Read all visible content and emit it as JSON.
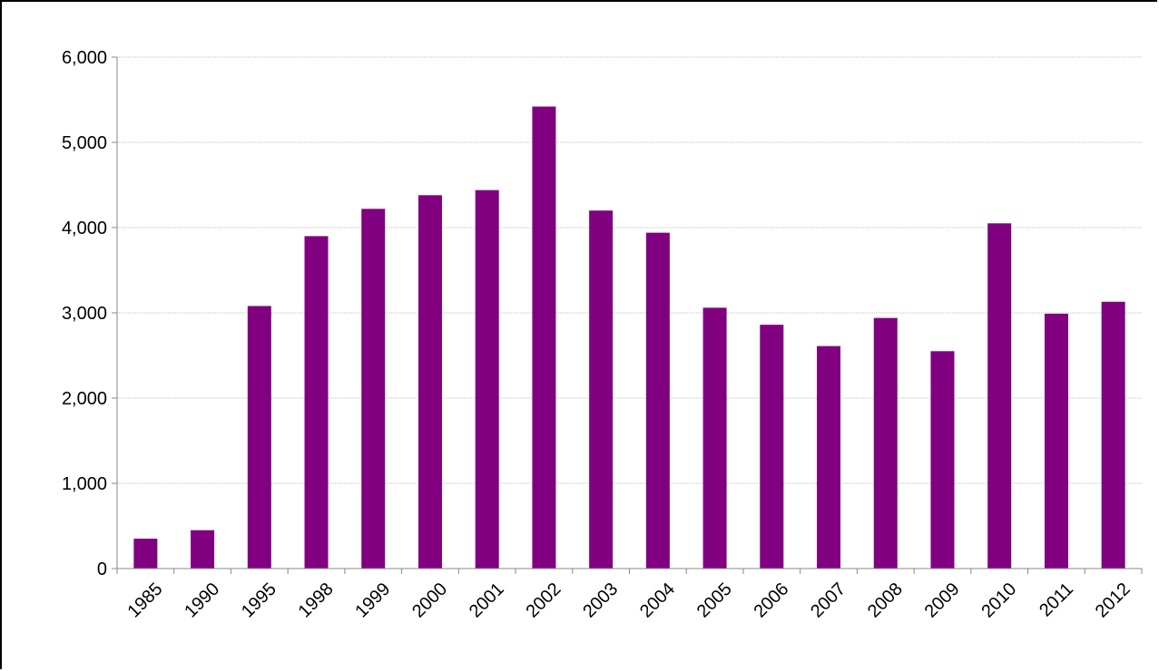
{
  "chart_data": {
    "type": "bar",
    "title": "",
    "xlabel": "",
    "ylabel": "",
    "categories": [
      "1985",
      "1990",
      "1995",
      "1998",
      "1999",
      "2000",
      "2001",
      "2002",
      "2003",
      "2004",
      "2005",
      "2006",
      "2007",
      "2008",
      "2009",
      "2010",
      "2011",
      "2012"
    ],
    "values": [
      350,
      450,
      3080,
      3900,
      4220,
      4380,
      4440,
      5420,
      4200,
      3940,
      3060,
      2860,
      2610,
      2940,
      2550,
      4050,
      2990,
      3130
    ],
    "ylim": [
      0,
      6000
    ],
    "yticks": [
      0,
      1000,
      2000,
      3000,
      4000,
      5000,
      6000
    ],
    "ytick_labels": [
      "0",
      "1,000",
      "2,000",
      "3,000",
      "4,000",
      "5,000",
      "6,000"
    ],
    "bar_color": "#800080",
    "grid": true,
    "legend": "none"
  }
}
